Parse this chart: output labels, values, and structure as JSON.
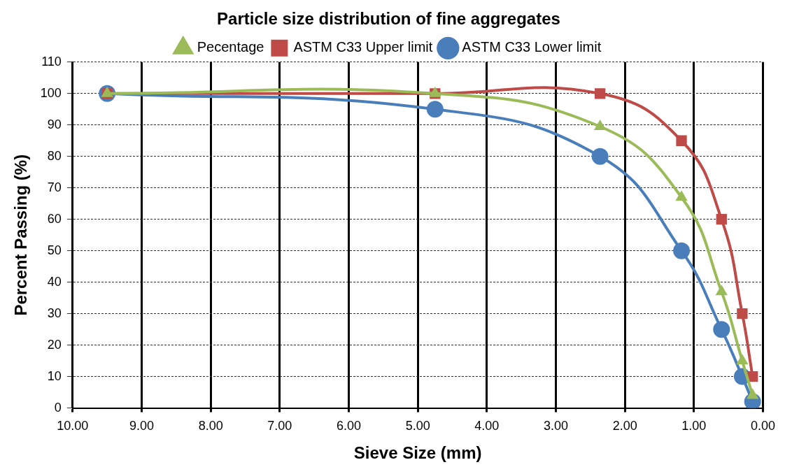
{
  "chart_data": {
    "type": "line",
    "title": "Particle size distribution of fine aggregates",
    "xlabel": "Sieve Size (mm)",
    "ylabel": "Percent Passing (%)",
    "x": [
      9.5,
      4.75,
      2.36,
      1.18,
      0.6,
      0.3,
      0.15
    ],
    "series": [
      {
        "name": "ASTM C33 Lower limit",
        "color": "#4a7ebb",
        "marker": "circle",
        "values": [
          100,
          95,
          80,
          50,
          25,
          10,
          2
        ]
      },
      {
        "name": "ASTM C33 Upper limit",
        "color": "#be4b48",
        "marker": "square",
        "values": [
          100,
          100,
          100,
          85,
          60,
          30,
          10
        ]
      },
      {
        "name": "Pecentage",
        "color": "#9bbb59",
        "marker": "triangle",
        "values": [
          100,
          100,
          89.5,
          67,
          37,
          15,
          4
        ]
      }
    ],
    "xlim": [
      10,
      0
    ],
    "xticks": [
      {
        "value": 10,
        "label": "10.00"
      },
      {
        "value": 9,
        "label": "9.00"
      },
      {
        "value": 8,
        "label": "8.00"
      },
      {
        "value": 7,
        "label": "7.00"
      },
      {
        "value": 6,
        "label": "6.00"
      },
      {
        "value": 5,
        "label": "5.00"
      },
      {
        "value": 4,
        "label": "4.00"
      },
      {
        "value": 3,
        "label": "3.00"
      },
      {
        "value": 2,
        "label": "2.00"
      },
      {
        "value": 1,
        "label": "1.00"
      },
      {
        "value": 0,
        "label": "0.00"
      }
    ],
    "ylim": [
      0,
      110
    ],
    "yticks": [
      0,
      10,
      20,
      30,
      40,
      50,
      60,
      70,
      80,
      90,
      100,
      110
    ],
    "grid": true,
    "legend": "top",
    "line_style": "solid"
  }
}
